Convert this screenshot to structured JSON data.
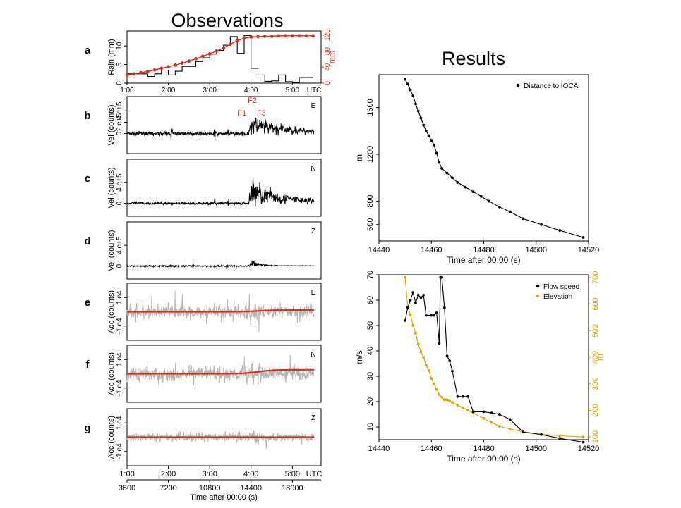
{
  "colors": {
    "black": "#000000",
    "red": "#d7301f",
    "orange": "#d9a400",
    "gray": "#b5b5b5"
  },
  "headings": {
    "observations": "Observations",
    "results": "Results"
  },
  "chart_data": [
    {
      "id": "a",
      "type": "bar",
      "panel_label": "a",
      "ylabel": "Rain (mm)",
      "y2label": "mm",
      "ylim": [
        0,
        14
      ],
      "y2lim": [
        0,
        130
      ],
      "yticks": [
        "0",
        "5",
        "10"
      ],
      "y2ticks": [
        "0",
        "40",
        "80",
        "120"
      ],
      "x_tick_labels": [
        "1:00",
        "2:00",
        "3:00",
        "4:00",
        "5:00",
        "UTC"
      ],
      "xlim": [
        3600,
        20500
      ],
      "series": [
        {
          "kind": "step",
          "x": [
            3600,
            4200,
            4800,
            5400,
            6000,
            6600,
            7200,
            7800,
            8400,
            9000,
            9600,
            10200,
            10800,
            11400,
            12000,
            12600,
            13200,
            13800,
            14400,
            15000,
            15600,
            16200,
            16800,
            17400,
            18000,
            18600,
            19200
          ],
          "values": [
            2.5,
            2.5,
            2.5,
            1.8,
            2.5,
            3.5,
            2.2,
            3.2,
            4.5,
            4.5,
            5.8,
            6.8,
            7.8,
            8.8,
            10.2,
            12.5,
            8.0,
            12.8,
            4.0,
            2.2,
            0.5,
            0.6,
            2.2,
            0.4,
            0.2,
            1.5,
            1.5
          ]
        },
        {
          "kind": "line-y2",
          "x": [
            3600,
            4200,
            4800,
            5400,
            6000,
            6600,
            7200,
            7800,
            8400,
            9000,
            9600,
            10200,
            10800,
            11400,
            12000,
            12600,
            13200,
            13800,
            14400,
            15000,
            15600,
            16200,
            16800,
            17400,
            18000,
            18600,
            19200,
            19800
          ],
          "values": [
            20,
            23,
            26,
            29,
            33,
            37,
            41,
            45,
            50,
            55,
            61,
            67,
            73,
            80,
            88,
            97,
            106,
            112,
            115,
            116,
            117,
            117,
            118,
            118,
            118,
            118,
            118,
            118
          ]
        }
      ]
    },
    {
      "id": "b",
      "type": "line",
      "panel_label": "b",
      "component": "E",
      "ylabel": "Vel (counts)",
      "yticks": [
        "0",
        "2.e+5",
        "4.e+5"
      ],
      "ylim": [
        -350000.0,
        650000.0
      ],
      "phase_labels": [
        "F1",
        "F2",
        "F3"
      ],
      "envelope": {
        "baseline": 12000,
        "jump": 14200,
        "peak": 14400,
        "noise": 30000.0,
        "peak_amp": 280000.0,
        "decay": 2600,
        "tail": 50000.0,
        "spikes": [
          7500,
          11200,
          12400
        ]
      }
    },
    {
      "id": "c",
      "type": "line",
      "panel_label": "c",
      "component": "N",
      "ylabel": "Vel (counts)",
      "yticks": [
        "0",
        "4.e+5"
      ],
      "ylim": [
        -250000.0,
        850000.0
      ],
      "envelope": {
        "baseline": 12000,
        "jump": 14200,
        "peak": 14400,
        "noise": 25000.0,
        "peak_amp": 460000.0,
        "decay": 2500,
        "tail": 40000.0,
        "spikes": [
          7500,
          11200,
          12400
        ]
      }
    },
    {
      "id": "d",
      "type": "line",
      "panel_label": "d",
      "component": "Z",
      "ylabel": "Vel (counts)",
      "yticks": [
        "0",
        "4.e+5"
      ],
      "ylim": [
        -250000.0,
        850000.0
      ],
      "envelope": {
        "baseline": 12000,
        "jump": 14300,
        "peak": 14450,
        "noise": 15000.0,
        "peak_amp": 120000.0,
        "decay": 700,
        "tail": 10000.0,
        "spikes": [
          7400,
          11200,
          12300
        ]
      }
    },
    {
      "id": "e",
      "type": "line",
      "panel_label": "e",
      "component": "E",
      "ylabel": "Acc (counts)",
      "yticks": [
        "-1.e4",
        "1.e4"
      ],
      "ylim": [
        -20000.0,
        20000.0
      ],
      "smooth_shift": 1200.0,
      "noise_gray": 9000.0
    },
    {
      "id": "f",
      "type": "line",
      "panel_label": "f",
      "component": "N",
      "ylabel": "Acc (counts)",
      "yticks": [
        "-1.e4",
        "1.e4"
      ],
      "ylim": [
        -20000.0,
        20000.0
      ],
      "smooth_shift": 2800.0,
      "noise_gray": 10000.0
    },
    {
      "id": "g",
      "type": "line",
      "panel_label": "g",
      "component": "Z",
      "ylabel": "Acc (counts)",
      "yticks": [
        "-1.e4",
        "1.e4"
      ],
      "ylim": [
        -20000.0,
        20000.0
      ],
      "smooth_shift": 0.0,
      "noise_gray": 6000.0,
      "bottom_axis": {
        "utc_labels": [
          "1:00",
          "2:00",
          "3:00",
          "4:00",
          "5:00",
          "UTC"
        ],
        "seconds_labels": [
          "3600",
          "7200",
          "10800",
          "14400",
          "18000"
        ],
        "xlabel": "Time after 00:00 (s)"
      }
    },
    {
      "id": "distance",
      "type": "line",
      "xlabel": "Time after 00:00 (s)",
      "ylabel": "m",
      "xlim": [
        14440,
        14520
      ],
      "ylim": [
        460,
        1880
      ],
      "x_ticks": [
        14440,
        14460,
        14480,
        14500,
        14520
      ],
      "y_ticks": [
        600,
        800,
        1200,
        1600
      ],
      "legend": "top-right",
      "series": [
        {
          "name": "Distance to IOCA",
          "color": "#000000",
          "x": [
            14450,
            14451,
            14452,
            14453,
            14454,
            14455,
            14456,
            14457,
            14458,
            14459,
            14460,
            14461,
            14462,
            14463,
            14464,
            14466,
            14468,
            14470,
            14473,
            14476,
            14479,
            14482,
            14486,
            14490,
            14495,
            14502,
            14509,
            14518
          ],
          "y": [
            1840,
            1800,
            1750,
            1700,
            1630,
            1570,
            1510,
            1450,
            1400,
            1360,
            1320,
            1280,
            1210,
            1130,
            1080,
            1040,
            1000,
            960,
            920,
            880,
            840,
            800,
            750,
            710,
            650,
            600,
            550,
            490
          ]
        }
      ]
    },
    {
      "id": "speed",
      "type": "line",
      "xlabel": "Time after 00:00 (s)",
      "ylabel": "m/s",
      "y2label": "m",
      "xlim": [
        14440,
        14520
      ],
      "ylim": [
        5,
        70
      ],
      "y2lim": [
        90,
        710
      ],
      "x_ticks": [
        14440,
        14460,
        14480,
        14500,
        14520
      ],
      "y_ticks": [
        10,
        20,
        30,
        40,
        50,
        60,
        70
      ],
      "y2_ticks": [
        100,
        200,
        300,
        400,
        500,
        600,
        700
      ],
      "legend": "top-right",
      "series": [
        {
          "name": "Flow speed",
          "color": "#000000",
          "axis": "left",
          "x": [
            14450,
            14451,
            14452,
            14453,
            14454,
            14455,
            14456,
            14457,
            14458,
            14460,
            14461,
            14462,
            14463,
            14463.5,
            14464,
            14465,
            14466,
            14467,
            14468,
            14470,
            14472,
            14474,
            14476,
            14480,
            14483,
            14486,
            14490,
            14495,
            14502,
            14509,
            14518
          ],
          "y": [
            52,
            57,
            60,
            63,
            59,
            62,
            61,
            62,
            54,
            54,
            54,
            55,
            43,
            69,
            69,
            57,
            38,
            36,
            32,
            22,
            22,
            22,
            16,
            16,
            15.5,
            15,
            13,
            8,
            7,
            5.5,
            4
          ]
        },
        {
          "name": "Elevation",
          "color": "#d9a400",
          "axis": "right",
          "x": [
            14450,
            14451,
            14452,
            14453,
            14454,
            14455,
            14456,
            14457,
            14458,
            14459,
            14460,
            14461,
            14462,
            14463,
            14464,
            14465,
            14466,
            14467,
            14468,
            14470,
            14472,
            14474,
            14476,
            14480,
            14483,
            14486,
            14490,
            14495,
            14502,
            14509,
            14518
          ],
          "y": [
            700,
            590,
            560,
            520,
            490,
            450,
            420,
            400,
            370,
            350,
            320,
            300,
            280,
            260,
            250,
            240,
            240,
            235,
            230,
            220,
            210,
            200,
            190,
            170,
            155,
            140,
            130,
            120,
            110,
            105,
            100
          ]
        }
      ]
    }
  ]
}
